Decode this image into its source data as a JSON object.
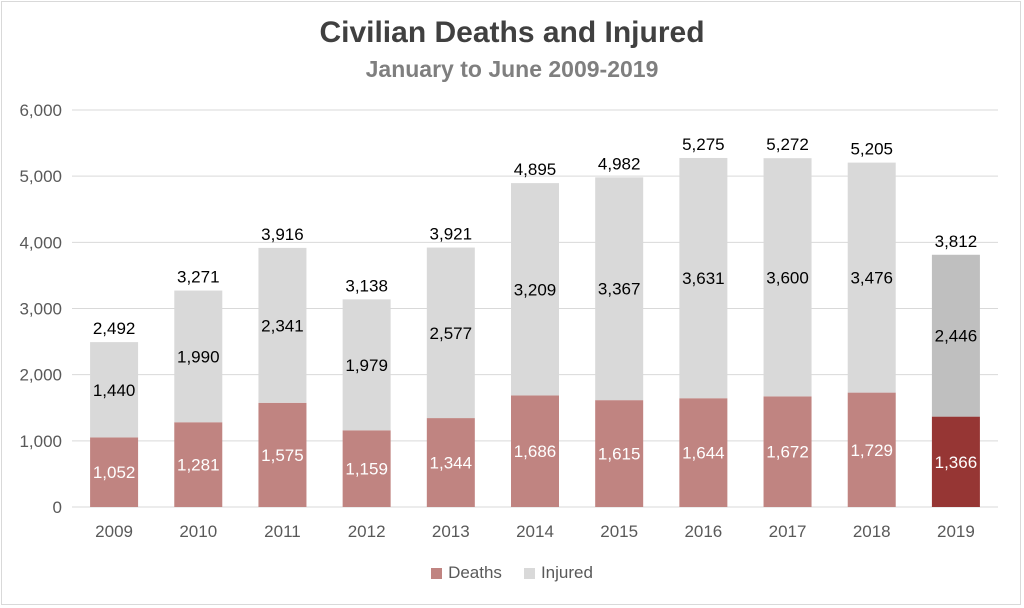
{
  "chart_data": {
    "type": "bar",
    "stacked": true,
    "title": "Civilian Deaths and Injured",
    "subtitle": "January to June 2009-2019",
    "categories": [
      "2009",
      "2010",
      "2011",
      "2012",
      "2013",
      "2014",
      "2015",
      "2016",
      "2017",
      "2018",
      "2019"
    ],
    "series": [
      {
        "name": "Deaths",
        "color": "#c08481",
        "highlight_color": "#963634",
        "values": [
          1052,
          1281,
          1575,
          1159,
          1344,
          1686,
          1615,
          1644,
          1672,
          1729,
          1366
        ],
        "labels": [
          "1,052",
          "1,281",
          "1,575",
          "1,159",
          "1,344",
          "1,686",
          "1,615",
          "1,644",
          "1,672",
          "1,729",
          "1,366"
        ]
      },
      {
        "name": "Injured",
        "color": "#d9d9d9",
        "highlight_color": "#bfbfbf",
        "values": [
          1440,
          1990,
          2341,
          1979,
          2577,
          3209,
          3367,
          3631,
          3600,
          3476,
          2446
        ],
        "labels": [
          "1,440",
          "1,990",
          "2,341",
          "1,979",
          "2,577",
          "3,209",
          "3,367",
          "3,631",
          "3,600",
          "3,476",
          "2,446"
        ]
      }
    ],
    "totals": [
      2492,
      3271,
      3916,
      3138,
      3921,
      4895,
      4982,
      5275,
      5272,
      5205,
      3812
    ],
    "total_labels": [
      "2,492",
      "3,271",
      "3,916",
      "3,138",
      "3,921",
      "4,895",
      "4,982",
      "5,275",
      "5,272",
      "5,205",
      "3,812"
    ],
    "highlight_category": "2019",
    "ylim": [
      0,
      6000
    ],
    "yticks": [
      0,
      1000,
      2000,
      3000,
      4000,
      5000,
      6000
    ],
    "ytick_labels": [
      "0",
      "1,000",
      "2,000",
      "3,000",
      "4,000",
      "5,000",
      "6,000"
    ],
    "xlabel": "",
    "ylabel": "",
    "grid": true,
    "legend_position": "bottom"
  }
}
